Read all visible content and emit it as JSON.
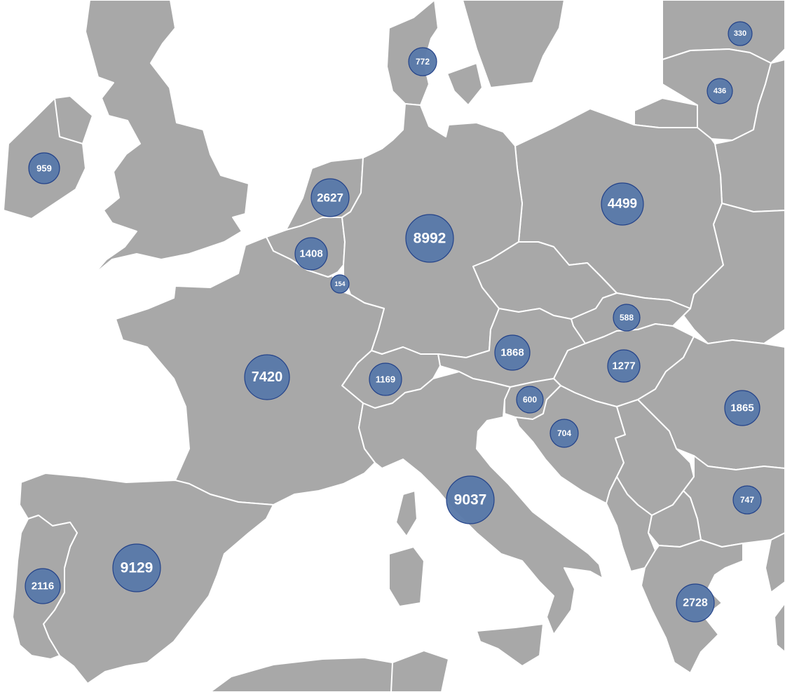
{
  "colors": {
    "sea": "#ffffff",
    "land": "#a8a8a8",
    "border": "#ffffff",
    "bubble_fill": "#5a7aaa",
    "bubble_stroke": "#1f3f88",
    "label": "#ffffff"
  },
  "markers": [
    {
      "id": "ireland",
      "value": "959"
    },
    {
      "id": "denmark",
      "value": "772"
    },
    {
      "id": "latvia",
      "value": "330"
    },
    {
      "id": "lithuania",
      "value": "436"
    },
    {
      "id": "netherlands",
      "value": "2627"
    },
    {
      "id": "germany",
      "value": "8992"
    },
    {
      "id": "poland",
      "value": "4499"
    },
    {
      "id": "belgium",
      "value": "1408"
    },
    {
      "id": "luxembourg",
      "value": "154"
    },
    {
      "id": "slovakia",
      "value": "588"
    },
    {
      "id": "austria",
      "value": "1868"
    },
    {
      "id": "hungary",
      "value": "1277"
    },
    {
      "id": "france",
      "value": "7420"
    },
    {
      "id": "switzerland",
      "value": "1169"
    },
    {
      "id": "slovenia",
      "value": "600"
    },
    {
      "id": "croatia",
      "value": "704"
    },
    {
      "id": "romania",
      "value": "1865"
    },
    {
      "id": "italy",
      "value": "9037"
    },
    {
      "id": "bulgaria",
      "value": "747"
    },
    {
      "id": "spain",
      "value": "9129"
    },
    {
      "id": "portugal",
      "value": "2116"
    },
    {
      "id": "greece",
      "value": "2728"
    }
  ]
}
